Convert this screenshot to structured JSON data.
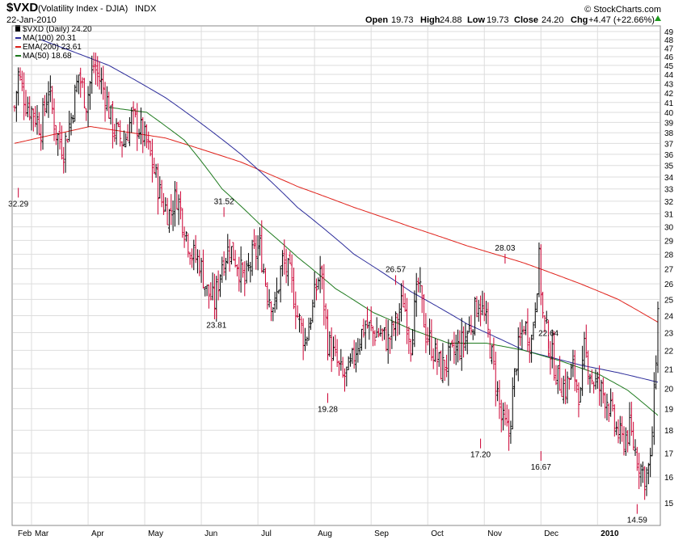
{
  "header": {
    "symbol": "$VXD",
    "name": "(Volatility Index - DJIA)",
    "exchange": "INDX",
    "date": "22-Jan-2010",
    "watermark": "© StockCharts.com",
    "open_label": "Open",
    "open": "19.73",
    "high_label": "High",
    "high": "24.88",
    "low_label": "Low",
    "low": "19.73",
    "close_label": "Close",
    "close": "24.20",
    "chg_label": "Chg",
    "chg": "+4.47 (+22.66%)"
  },
  "legend": [
    {
      "text": "$VXD (Daily) 24.20",
      "color": "#000000"
    },
    {
      "text": "MA(100) 20.31",
      "color": "#2b2b9a"
    },
    {
      "text": "EMA(200) 23.61",
      "color": "#e0231c"
    },
    {
      "text": "MA(50) 18.68",
      "color": "#1e7a1e"
    }
  ],
  "chart_data": {
    "type": "ohlc",
    "x_labels": [
      "Feb",
      "Mar",
      "Apr",
      "May",
      "Jun",
      "Jul",
      "Aug",
      "Sep",
      "Oct",
      "Nov",
      "Dec",
      "2010"
    ],
    "y_ticks": [
      15,
      16,
      17,
      18,
      19,
      20,
      21,
      22,
      23,
      24,
      25,
      26,
      27,
      28,
      29,
      30,
      31,
      32,
      33,
      34,
      35,
      36,
      37,
      38,
      39,
      40,
      41,
      42,
      43,
      44,
      45,
      46,
      47,
      48,
      49
    ],
    "ylim": [
      14.2,
      49.6
    ],
    "y_scale": "log",
    "grid": true,
    "legend_position": "top-left",
    "up_color": "#000000",
    "down_color": "#cc0033",
    "price_keypoints": [
      [
        0,
        40.5
      ],
      [
        2,
        44.0
      ],
      [
        6,
        41.0
      ],
      [
        10,
        40.0
      ],
      [
        14,
        38.5
      ],
      [
        18,
        42.5
      ],
      [
        22,
        38.0
      ],
      [
        26,
        36.5
      ],
      [
        30,
        39.5
      ],
      [
        34,
        44.0
      ],
      [
        38,
        41.0
      ],
      [
        42,
        45.0
      ],
      [
        48,
        42.0
      ],
      [
        52,
        38.5
      ],
      [
        58,
        37.0
      ],
      [
        62,
        39.5
      ],
      [
        66,
        38.5
      ],
      [
        70,
        37.0
      ],
      [
        74,
        34.5
      ],
      [
        78,
        32.0
      ],
      [
        82,
        31.0
      ],
      [
        86,
        32.5
      ],
      [
        90,
        30.0
      ],
      [
        94,
        28.0
      ],
      [
        98,
        27.5
      ],
      [
        102,
        25.5
      ],
      [
        106,
        24.8
      ],
      [
        110,
        27.5
      ],
      [
        114,
        28.5
      ],
      [
        118,
        27.5
      ],
      [
        122,
        26.0
      ],
      [
        126,
        27.8
      ],
      [
        130,
        28.5
      ],
      [
        134,
        25.5
      ],
      [
        138,
        24.5
      ],
      [
        142,
        27.5
      ],
      [
        146,
        26.5
      ],
      [
        150,
        24.0
      ],
      [
        154,
        22.5
      ],
      [
        158,
        24.5
      ],
      [
        162,
        27.0
      ],
      [
        166,
        22.5
      ],
      [
        170,
        21.5
      ],
      [
        174,
        20.5
      ],
      [
        178,
        21.0
      ],
      [
        182,
        22.5
      ],
      [
        186,
        23.5
      ],
      [
        190,
        23.0
      ],
      [
        194,
        23.0
      ],
      [
        198,
        22.5
      ],
      [
        202,
        23.5
      ],
      [
        206,
        25.0
      ],
      [
        210,
        22.5
      ],
      [
        214,
        26.0
      ],
      [
        218,
        23.0
      ],
      [
        222,
        22.0
      ],
      [
        226,
        21.0
      ],
      [
        230,
        21.5
      ],
      [
        234,
        22.0
      ],
      [
        238,
        22.5
      ],
      [
        242,
        23.5
      ],
      [
        246,
        25.0
      ],
      [
        250,
        23.5
      ],
      [
        254,
        21.0
      ],
      [
        258,
        18.5
      ],
      [
        262,
        17.8
      ],
      [
        266,
        21.5
      ],
      [
        270,
        23.5
      ],
      [
        274,
        22.5
      ],
      [
        278,
        27.5
      ],
      [
        280,
        24.0
      ],
      [
        284,
        22.0
      ],
      [
        288,
        20.5
      ],
      [
        292,
        20.0
      ],
      [
        296,
        21.0
      ],
      [
        300,
        19.5
      ],
      [
        302,
        22.0
      ],
      [
        306,
        20.5
      ],
      [
        310,
        20.0
      ],
      [
        314,
        19.5
      ],
      [
        318,
        18.2
      ],
      [
        322,
        17.5
      ],
      [
        326,
        18.0
      ],
      [
        330,
        16.8
      ],
      [
        334,
        16.0
      ],
      [
        337,
        16.5
      ],
      [
        339,
        19.5
      ],
      [
        341,
        24.2
      ]
    ],
    "ma100_points": [
      [
        14,
        48.0
      ],
      [
        50,
        45.0
      ],
      [
        80,
        41.5
      ],
      [
        120,
        36.0
      ],
      [
        150,
        31.5
      ],
      [
        180,
        28.0
      ],
      [
        210,
        25.5
      ],
      [
        240,
        23.5
      ],
      [
        270,
        22.0
      ],
      [
        300,
        21.2
      ],
      [
        320,
        20.8
      ],
      [
        341,
        20.31
      ]
    ],
    "ema200_points": [
      [
        0,
        37.0
      ],
      [
        40,
        38.6
      ],
      [
        80,
        37.5
      ],
      [
        120,
        35.3
      ],
      [
        150,
        33.2
      ],
      [
        180,
        31.5
      ],
      [
        210,
        30.0
      ],
      [
        240,
        28.6
      ],
      [
        270,
        27.4
      ],
      [
        300,
        26.0
      ],
      [
        320,
        25.0
      ],
      [
        341,
        23.61
      ]
    ],
    "ma50_points": [
      [
        50,
        40.5
      ],
      [
        70,
        40.0
      ],
      [
        90,
        37.3
      ],
      [
        110,
        33.0
      ],
      [
        130,
        30.2
      ],
      [
        150,
        27.8
      ],
      [
        170,
        25.7
      ],
      [
        190,
        24.2
      ],
      [
        210,
        23.2
      ],
      [
        230,
        22.4
      ],
      [
        250,
        22.4
      ],
      [
        270,
        22.0
      ],
      [
        290,
        21.4
      ],
      [
        310,
        20.7
      ],
      [
        325,
        19.9
      ],
      [
        341,
        18.68
      ]
    ],
    "annotations": [
      {
        "label": "32.29",
        "bar": 2,
        "value": 32.29,
        "side": "below"
      },
      {
        "label": "31.52",
        "bar": 111,
        "value": 31.52,
        "side": "above"
      },
      {
        "label": "23.81",
        "bar": 107,
        "value": 23.81,
        "side": "below"
      },
      {
        "label": "26.57",
        "bar": 202,
        "value": 26.57,
        "side": "above"
      },
      {
        "label": "19.28",
        "bar": 166,
        "value": 19.28,
        "side": "below"
      },
      {
        "label": "28.03",
        "bar": 260,
        "value": 28.03,
        "side": "above"
      },
      {
        "label": "17.20",
        "bar": 247,
        "value": 17.2,
        "side": "below"
      },
      {
        "label": "22.64",
        "bar": 283,
        "value": 22.64,
        "side": "above"
      },
      {
        "label": "16.67",
        "bar": 279,
        "value": 16.67,
        "side": "below"
      },
      {
        "label": "14.59",
        "bar": 330,
        "value": 14.59,
        "side": "below"
      }
    ]
  }
}
